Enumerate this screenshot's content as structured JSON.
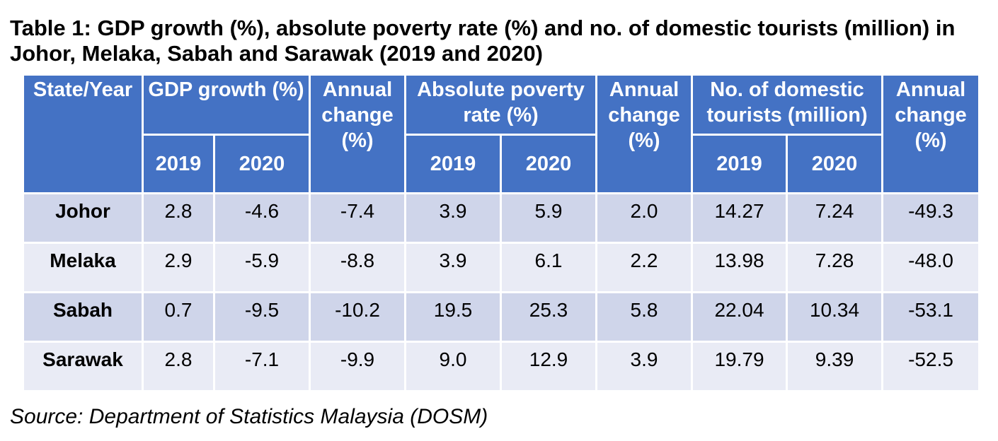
{
  "title": "Table 1: GDP growth (%), absolute poverty rate (%) and no. of domestic tourists (million) in Johor, Melaka, Sabah and Sarawak (2019 and 2020)",
  "table": {
    "header": {
      "state_year": "State/Year",
      "gdp_growth": "GDP growth (%)",
      "annual_change_1": "Annual change (%)",
      "poverty": "Absolute poverty rate (%)",
      "annual_change_2": "Annual change (%)",
      "tourists": "No. of domestic tourists (million)",
      "annual_change_3": "Annual change (%)",
      "years": [
        "2019",
        "2020",
        "2019",
        "2020",
        "2019",
        "2020"
      ]
    },
    "rows": [
      {
        "state": "Johor",
        "values": [
          "2.8",
          "-4.6",
          "-7.4",
          "3.9",
          "5.9",
          "2.0",
          "14.27",
          "7.24",
          "-49.3"
        ]
      },
      {
        "state": "Melaka",
        "values": [
          "2.9",
          "-5.9",
          "-8.8",
          "3.9",
          "6.1",
          "2.2",
          "13.98",
          "7.28",
          "-48.0"
        ]
      },
      {
        "state": "Sabah",
        "values": [
          "0.7",
          "-9.5",
          "-10.2",
          "19.5",
          "25.3",
          "5.8",
          "22.04",
          "10.34",
          "-53.1"
        ]
      },
      {
        "state": "Sarawak",
        "values": [
          "2.8",
          "-7.1",
          "-9.9",
          "9.0",
          "12.9",
          "3.9",
          "19.79",
          "9.39",
          "-52.5"
        ]
      }
    ]
  },
  "source": "Source: Department of Statistics Malaysia (DOSM)",
  "colors": {
    "header_bg": "#4472C4",
    "row_odd_bg": "#CFD5EA",
    "row_even_bg": "#E9EBF5"
  }
}
